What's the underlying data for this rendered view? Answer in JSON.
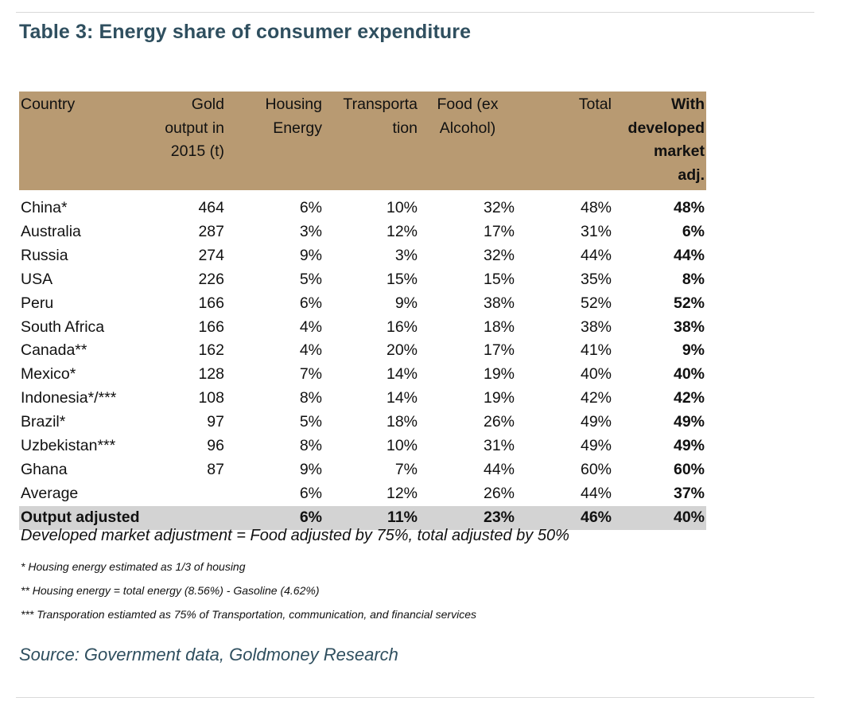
{
  "title": "Table 3: Energy share of consumer expenditure",
  "table": {
    "headers": [
      {
        "lines": [
          "Country"
        ]
      },
      {
        "lines": [
          "Gold",
          "output in",
          "2015 (t)"
        ]
      },
      {
        "lines": [
          "Housing",
          "Energy"
        ]
      },
      {
        "lines": [
          "Transporta",
          "tion"
        ]
      },
      {
        "lines": [
          "Food (ex",
          "Alcohol)"
        ]
      },
      {
        "lines": [
          "Total"
        ]
      },
      {
        "lines": [
          "With",
          "developed",
          "market",
          "adj."
        ]
      }
    ],
    "rows": [
      [
        "China*",
        "464",
        "6%",
        "10%",
        "32%",
        "48%",
        "48%"
      ],
      [
        "Australia",
        "287",
        "3%",
        "12%",
        "17%",
        "31%",
        "6%"
      ],
      [
        "Russia",
        "274",
        "9%",
        "3%",
        "32%",
        "44%",
        "44%"
      ],
      [
        "USA",
        "226",
        "5%",
        "15%",
        "15%",
        "35%",
        "8%"
      ],
      [
        "Peru",
        "166",
        "6%",
        "9%",
        "38%",
        "52%",
        "52%"
      ],
      [
        "South Africa",
        "166",
        "4%",
        "16%",
        "18%",
        "38%",
        "38%"
      ],
      [
        "Canada**",
        "162",
        "4%",
        "20%",
        "17%",
        "41%",
        "9%"
      ],
      [
        "Mexico*",
        "128",
        "7%",
        "14%",
        "19%",
        "40%",
        "40%"
      ],
      [
        "Indonesia*/***",
        "108",
        "8%",
        "14%",
        "19%",
        "42%",
        "42%"
      ],
      [
        "Brazil*",
        "97",
        "5%",
        "18%",
        "26%",
        "49%",
        "49%"
      ],
      [
        "Uzbekistan***",
        "96",
        "8%",
        "10%",
        "31%",
        "49%",
        "49%"
      ],
      [
        "Ghana",
        "87",
        "9%",
        "7%",
        "44%",
        "60%",
        "60%"
      ],
      [
        "Average",
        "",
        "6%",
        "12%",
        "26%",
        "44%",
        "37%"
      ]
    ],
    "adjusted_row": [
      "Output adjusted",
      "",
      "6%",
      "11%",
      "23%",
      "46%",
      "40%"
    ]
  },
  "note": "Developed market adjustment = Food adjusted by 75%, total adjusted by 50%",
  "footnotes": [
    "* Housing energy estimated as 1/3 of housing",
    "** Housing energy = total energy (8.56%) - Gasoline (4.62%)",
    "*** Transporation estiamted as 75% of Transportation, communication, and financial services"
  ],
  "source": "Source: Government data, Goldmoney Research",
  "colors": {
    "header_background": "#b89a72",
    "adjusted_row_background": "#d3d3d3",
    "title_color": "#2f4f5f"
  }
}
